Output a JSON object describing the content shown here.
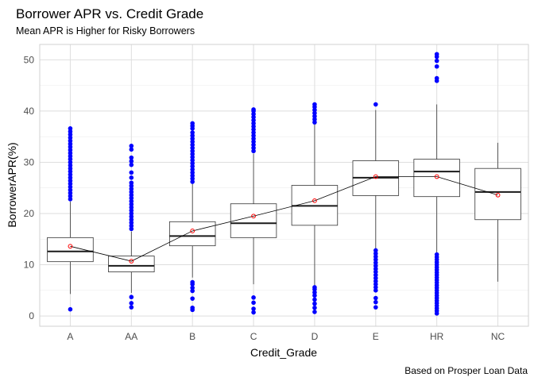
{
  "chart_data": {
    "type": "boxplot",
    "title": "Borrower APR vs. Credit Grade",
    "subtitle": "Mean APR is Higher for Risky Borrowers",
    "xlabel": "Credit_Grade",
    "ylabel": "BorrowerAPR(%)",
    "caption": "Based on Prosper Loan Data",
    "ylim": [
      -2,
      53
    ],
    "yticks": [
      0,
      10,
      20,
      30,
      40,
      50
    ],
    "grid": true,
    "categories": [
      "A",
      "AA",
      "B",
      "C",
      "D",
      "E",
      "HR",
      "NC"
    ],
    "boxes": [
      {
        "category": "A",
        "whisker_low": 4.3,
        "q1": 10.6,
        "median": 12.6,
        "q3": 15.3,
        "whisker_high": 22.3
      },
      {
        "category": "AA",
        "whisker_low": 4.5,
        "q1": 8.6,
        "median": 9.8,
        "q3": 11.7,
        "whisker_high": 16.5
      },
      {
        "category": "B",
        "whisker_low": 7.5,
        "q1": 13.7,
        "median": 15.6,
        "q3": 18.4,
        "whisker_high": 25.8
      },
      {
        "category": "C",
        "whisker_low": 6.2,
        "q1": 15.3,
        "median": 18.1,
        "q3": 21.9,
        "whisker_high": 31.7
      },
      {
        "category": "D",
        "whisker_low": 6.0,
        "q1": 17.7,
        "median": 21.5,
        "q3": 25.5,
        "whisker_high": 37.4
      },
      {
        "category": "E",
        "whisker_low": 13.1,
        "q1": 23.5,
        "median": 27.0,
        "q3": 30.3,
        "whisker_high": 40.2
      },
      {
        "category": "HR",
        "whisker_low": 12.3,
        "q1": 23.3,
        "median": 28.2,
        "q3": 30.6,
        "whisker_high": 41.3
      },
      {
        "category": "NC",
        "whisker_low": 6.7,
        "q1": 18.8,
        "median": 24.2,
        "q3": 28.8,
        "whisker_high": 33.8
      }
    ],
    "means": [
      13.6,
      10.7,
      16.6,
      19.5,
      22.5,
      27.2,
      27.2,
      23.6
    ],
    "outliers": [
      {
        "category": "A",
        "values": [
          1.3,
          22.8,
          23.4,
          24.0,
          24.6,
          25.2,
          25.8,
          26.4,
          27.0,
          27.6,
          28.2,
          28.8,
          29.4,
          30.0,
          30.6,
          31.2,
          31.8,
          32.4,
          33.0,
          33.6,
          34.2,
          34.8,
          35.4,
          36.0,
          36.6
        ]
      },
      {
        "category": "AA",
        "values": [
          1.7,
          2.5,
          3.7,
          17.0,
          17.6,
          18.2,
          18.8,
          19.4,
          20.0,
          20.6,
          21.2,
          21.8,
          22.4,
          23.0,
          23.6,
          24.2,
          24.8,
          25.4,
          26.0,
          27.0,
          28.0,
          29.5,
          30.2,
          30.9,
          32.5,
          33.2
        ]
      },
      {
        "category": "B",
        "values": [
          1.2,
          1.6,
          3.4,
          4.9,
          5.5,
          6.2,
          6.6,
          26.2,
          26.8,
          27.4,
          28.0,
          28.6,
          29.2,
          29.8,
          30.4,
          31.0,
          31.6,
          32.2,
          32.8,
          33.4,
          34.0,
          34.6,
          35.2,
          35.8,
          36.6,
          37.1,
          37.6
        ]
      },
      {
        "category": "C",
        "values": [
          0.7,
          1.4,
          2.6,
          3.6,
          32.2,
          32.8,
          33.4,
          34.0,
          34.6,
          35.2,
          35.8,
          36.4,
          37.0,
          37.6,
          38.2,
          38.8,
          39.4,
          40.0,
          40.3
        ]
      },
      {
        "category": "D",
        "values": [
          0.8,
          1.6,
          2.4,
          3.2,
          4.0,
          4.6,
          5.2,
          5.6,
          37.8,
          38.4,
          39.0,
          39.6,
          40.2,
          40.8,
          41.3
        ]
      },
      {
        "category": "E",
        "values": [
          1.7,
          2.7,
          3.5,
          5.0,
          5.6,
          6.2,
          6.8,
          7.4,
          8.0,
          8.6,
          9.2,
          9.8,
          10.4,
          11.0,
          11.6,
          12.2,
          12.8,
          41.3
        ]
      },
      {
        "category": "HR",
        "values": [
          0.5,
          1.0,
          1.5,
          2.0,
          2.5,
          3.0,
          3.5,
          4.0,
          4.5,
          5.0,
          5.5,
          6.0,
          6.5,
          7.0,
          7.5,
          8.0,
          8.5,
          9.0,
          9.5,
          10.0,
          10.5,
          11.0,
          11.5,
          12.0,
          45.9,
          46.4,
          48.7,
          49.8,
          50.6,
          51.1
        ]
      },
      {
        "category": "NC",
        "values": []
      }
    ],
    "colors": {
      "outlier": "#0000ff",
      "box_stroke": "#333333",
      "box_fill": "#ffffff",
      "median": "#1a1a1a",
      "mean_point": "#ff0000",
      "mean_line": "#000000",
      "grid": "#dedede",
      "panel_border": "#d0d0d0"
    }
  }
}
